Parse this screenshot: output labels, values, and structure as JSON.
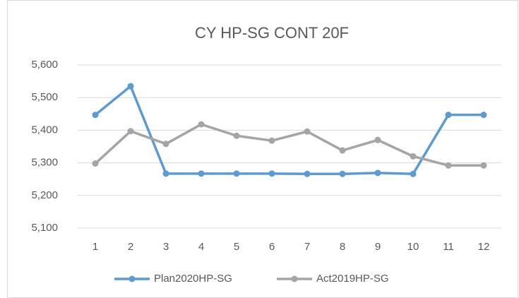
{
  "chart_data": {
    "type": "line",
    "title": "CY HP-SG CONT 20F",
    "categories": [
      "1",
      "2",
      "3",
      "4",
      "5",
      "6",
      "7",
      "8",
      "9",
      "10",
      "11",
      "12"
    ],
    "series": [
      {
        "name": "Plan2020HP-SG",
        "color": "#5b9bd5",
        "values": [
          5447,
          5535,
          5267,
          5267,
          5267,
          5267,
          5266,
          5266,
          5269,
          5266,
          5447,
          5447
        ]
      },
      {
        "name": "Act2019HP-SG",
        "color": "#a5a5a5",
        "values": [
          5298,
          5397,
          5358,
          5418,
          5383,
          5368,
          5396,
          5338,
          5370,
          5320,
          5292,
          5292
        ]
      }
    ],
    "ylim": [
      5100,
      5600
    ],
    "yticks": [
      {
        "value": 5100,
        "label": "5,100"
      },
      {
        "value": 5200,
        "label": "5,200"
      },
      {
        "value": 5300,
        "label": "5,300"
      },
      {
        "value": 5400,
        "label": "5,400"
      },
      {
        "value": 5500,
        "label": "5,500"
      },
      {
        "value": 5600,
        "label": "5,600"
      }
    ],
    "grid": true,
    "legend": "bottom"
  }
}
